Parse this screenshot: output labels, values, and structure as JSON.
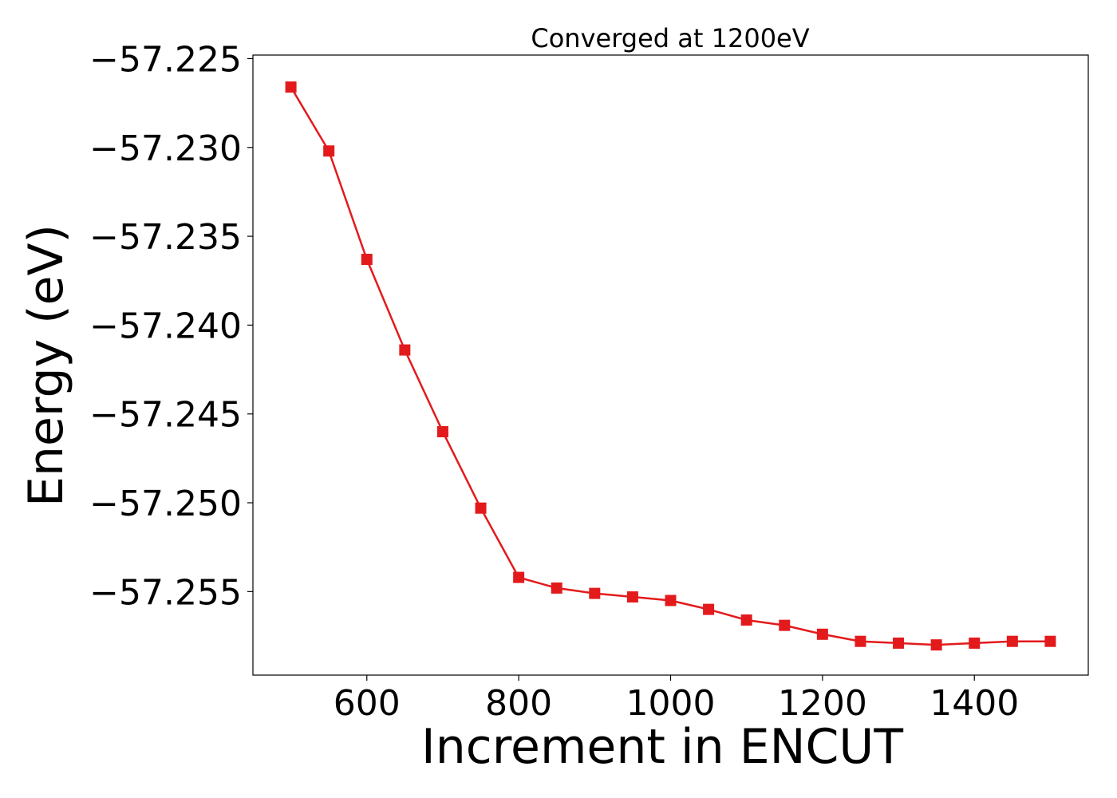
{
  "chart_data": {
    "type": "line",
    "title": "Converged at 1200eV",
    "xlabel": "Increment in ENCUT",
    "ylabel": "Energy (eV)",
    "xlim": [
      450,
      1550
    ],
    "ylim": [
      -57.2597,
      -57.2248
    ],
    "xticks": [
      600,
      800,
      1000,
      1200,
      1400
    ],
    "xtick_labels": [
      "600",
      "800",
      "1000",
      "1200",
      "1400"
    ],
    "yticks": [
      -57.225,
      -57.23,
      -57.235,
      -57.24,
      -57.245,
      -57.25,
      -57.255
    ],
    "ytick_labels": [
      "−57.225",
      "−57.230",
      "−57.235",
      "−57.240",
      "−57.245",
      "−57.250",
      "−57.255"
    ],
    "grid": false,
    "series": [
      {
        "color": "#e31a1c",
        "marker": "square",
        "x": [
          500,
          550,
          600,
          650,
          700,
          750,
          800,
          850,
          900,
          950,
          1000,
          1050,
          1100,
          1150,
          1200,
          1250,
          1300,
          1350,
          1400,
          1450,
          1500
        ],
        "y": [
          -57.2266,
          -57.2302,
          -57.2363,
          -57.2414,
          -57.246,
          -57.2503,
          -57.2542,
          -57.2548,
          -57.2551,
          -57.2553,
          -57.2555,
          -57.256,
          -57.2566,
          -57.2569,
          -57.2574,
          -57.2578,
          -57.2579,
          -57.258,
          -57.2579,
          -57.2578,
          -57.2578
        ]
      }
    ]
  }
}
